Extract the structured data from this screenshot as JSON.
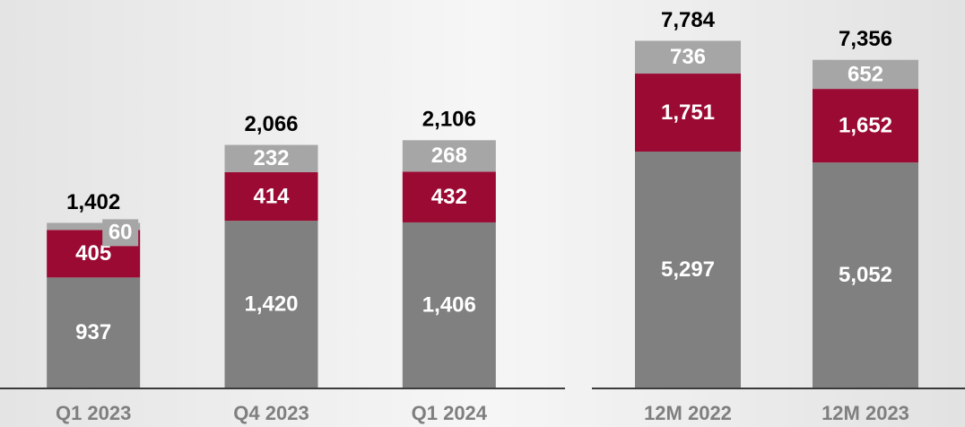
{
  "chart_data": [
    {
      "type": "bar",
      "stacked": true,
      "categories": [
        "Q1 2023",
        "Q4 2023",
        "Q1 2024"
      ],
      "series": [
        {
          "color": "#808080",
          "values": [
            937,
            1420,
            1406
          ],
          "value_labels": [
            "937",
            "1,420",
            "1,406"
          ]
        },
        {
          "color": "#9b0a33",
          "values": [
            405,
            414,
            432
          ],
          "value_labels": [
            "405",
            "414",
            "432"
          ]
        },
        {
          "color": "#a6a6a6",
          "values": [
            60,
            232,
            268
          ],
          "value_labels": [
            "60",
            "232",
            "268"
          ]
        }
      ],
      "totals": [
        1402,
        2066,
        2106
      ],
      "total_labels": [
        "1,402",
        "2,066",
        "2,106"
      ],
      "ylim": [
        0,
        3300
      ]
    },
    {
      "type": "bar",
      "stacked": true,
      "categories": [
        "12M 2022",
        "12M 2023"
      ],
      "series": [
        {
          "color": "#808080",
          "values": [
            5297,
            5052
          ],
          "value_labels": [
            "5,297",
            "5,052"
          ]
        },
        {
          "color": "#9b0a33",
          "values": [
            1751,
            1652
          ],
          "value_labels": [
            "1,751",
            "1,652"
          ]
        },
        {
          "color": "#a6a6a6",
          "values": [
            736,
            652
          ],
          "value_labels": [
            "736",
            "652"
          ]
        }
      ],
      "totals": [
        7784,
        7356
      ],
      "total_labels": [
        "7,784",
        "7,356"
      ],
      "ylim": [
        0,
        8700
      ]
    }
  ]
}
